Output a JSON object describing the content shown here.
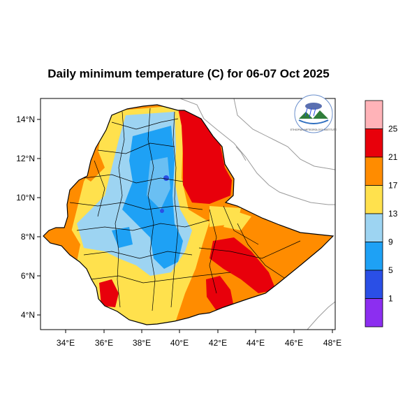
{
  "title": "Daily minimum temperature (C) for 06-07 Oct 2025",
  "axes": {
    "x_ticks": [
      "34°E",
      "36°E",
      "38°E",
      "40°E",
      "42°E",
      "44°E",
      "46°E",
      "48°E"
    ],
    "y_ticks": [
      "14°N",
      "12°N",
      "10°N",
      "8°N",
      "6°N",
      "4°N"
    ]
  },
  "legend": {
    "labels": [
      "25",
      "21",
      "17",
      "13",
      "9",
      "5",
      "1"
    ],
    "colors": [
      "#ffb3b8",
      "#e8000b",
      "#ff8c00",
      "#ffe14d",
      "#9dd4f2",
      "#1ea1f5",
      "#2a4fe6",
      "#8c2ef0"
    ]
  },
  "logo": {
    "text": "ETHIOPIAN METEOROLOGY INSTITUTE"
  },
  "colors": {
    "land_outside": "#ffffff",
    "boundary": "#000000"
  }
}
